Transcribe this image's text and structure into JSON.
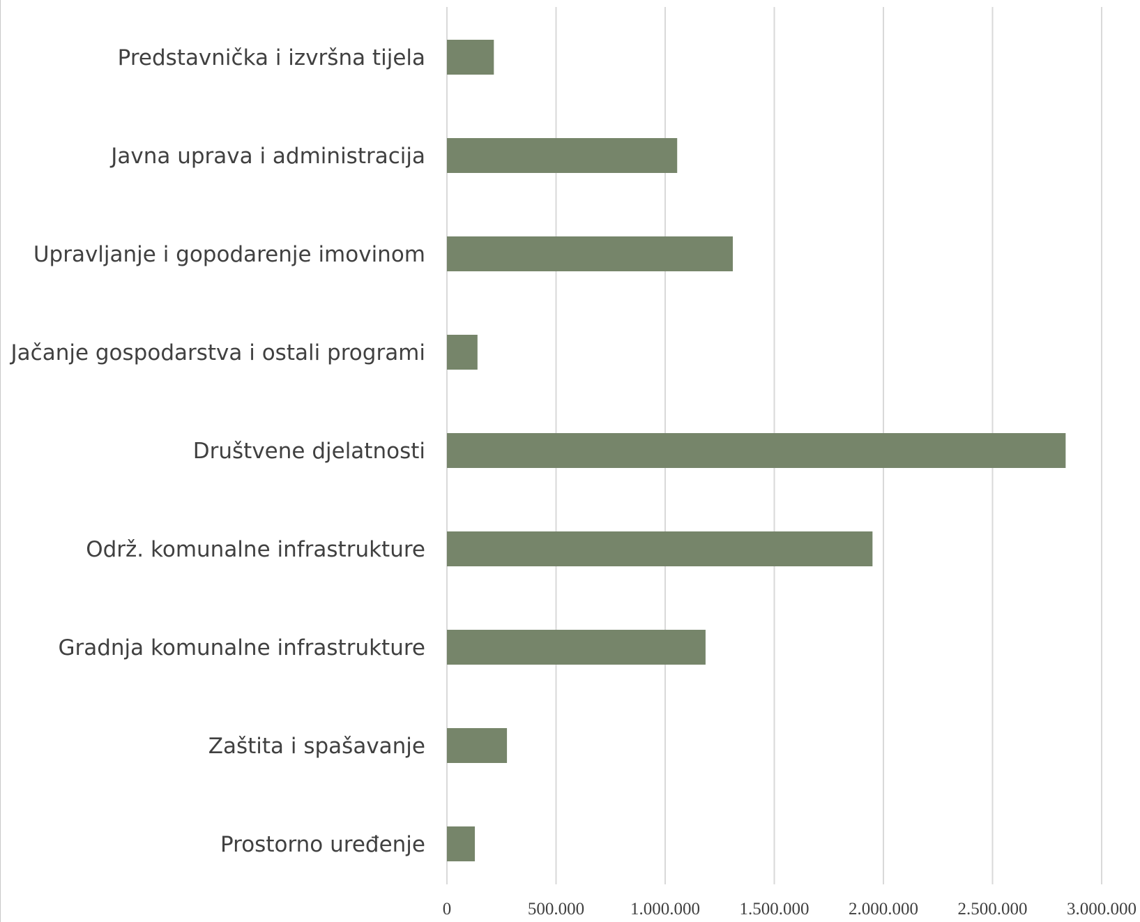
{
  "chart_data": {
    "type": "bar",
    "orientation": "horizontal",
    "title": "",
    "xlabel": "",
    "ylabel": "",
    "categories": [
      "Predstavnička i izvršna tijela",
      "Javna uprava i administracija",
      "Upravljanje i gopodarenje imovinom",
      "Jačanje gospodarstva i ostali programi",
      "Društvene djelatnosti",
      "Održ. komunalne infrastrukture",
      "Gradnja komunalne infrastrukture",
      "Zaštita i spašavanje",
      "Prostorno uređenje"
    ],
    "values": [
      215000,
      1055000,
      1310000,
      140000,
      2835000,
      1950000,
      1185000,
      275000,
      128000
    ],
    "xlim": [
      0,
      3000000
    ],
    "ticks": [
      0,
      500000,
      1000000,
      1500000,
      2000000,
      2500000,
      3000000
    ],
    "tick_labels": [
      "0",
      "500.000",
      "1.000.000",
      "1.500.000",
      "2.000.000",
      "2.500.000",
      "3.000.000"
    ],
    "bar_color": "#76856a",
    "grid": true,
    "legend": "none"
  }
}
